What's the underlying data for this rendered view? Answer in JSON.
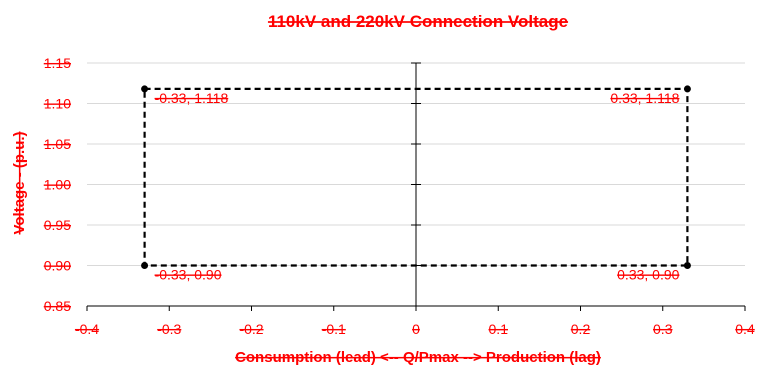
{
  "chart_data": {
    "type": "scatter",
    "title": "110kV and 220kV Connection Voltage",
    "xlabel": "Consumption (lead) <-- Q/Pmax --> Production (lag)",
    "ylabel": "Voltage - (p.u.)",
    "xlim": [
      -0.4,
      0.4
    ],
    "ylim": [
      0.85,
      1.15
    ],
    "x_ticks": [
      "-0.4",
      "-0.3",
      "-0.2",
      "-0.1",
      "0",
      "0.1",
      "0.2",
      "0.3",
      "0.4"
    ],
    "y_ticks": [
      "0.85",
      "0.90",
      "0.95",
      "1.00",
      "1.05",
      "1.10",
      "1.15"
    ],
    "grid": true,
    "legend": "none",
    "colors": {
      "text": "#ff0000",
      "series": "#000000",
      "grid": "#d9d9d9"
    },
    "series": [
      {
        "points": [
          {
            "x": -0.33,
            "y": 1.118,
            "label": "-0.33, 1.118"
          },
          {
            "x": 0.33,
            "y": 1.118,
            "label": "0.33, 1.118"
          },
          {
            "x": 0.33,
            "y": 0.9,
            "label": "0.33, 0.90"
          },
          {
            "x": -0.33,
            "y": 0.9,
            "label": "-0.33, 0.90"
          },
          {
            "x": -0.33,
            "y": 1.118
          }
        ]
      }
    ]
  }
}
